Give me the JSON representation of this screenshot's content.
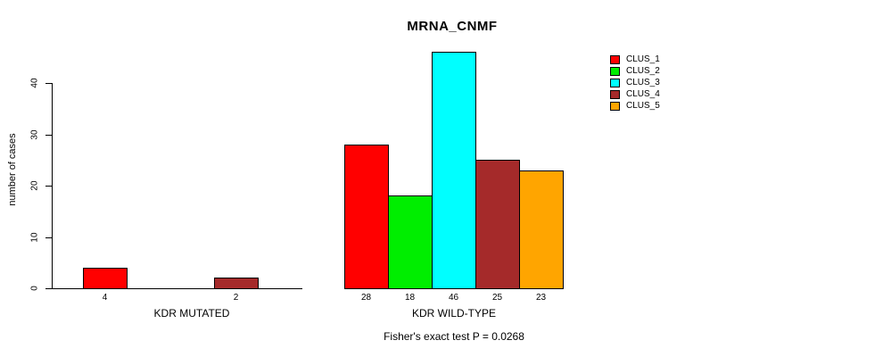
{
  "title": "MRNA_CNMF",
  "chart_data": {
    "type": "bar",
    "title": "MRNA_CNMF",
    "xlabel": "",
    "ylabel": "number of cases",
    "ylim": [
      0,
      46
    ],
    "yticks": [
      0,
      10,
      20,
      30,
      40
    ],
    "grid": false,
    "legend_position": "right-outside",
    "groups": [
      "KDR MUTATED",
      "KDR WILD-TYPE"
    ],
    "series": [
      {
        "name": "CLUS_1",
        "color": "#FF0000",
        "values": [
          4,
          28
        ]
      },
      {
        "name": "CLUS_2",
        "color": "#00EE00",
        "values": [
          0,
          18
        ]
      },
      {
        "name": "CLUS_3",
        "color": "#00FFFF",
        "values": [
          0,
          46
        ]
      },
      {
        "name": "CLUS_4",
        "color": "#A52A2A",
        "values": [
          2,
          25
        ]
      },
      {
        "name": "CLUS_5",
        "color": "#FFA500",
        "values": [
          0,
          23
        ]
      }
    ],
    "value_labels": "shown under each bar, only for nonzero values",
    "annotation": "Fisher's exact test P = 0.0268"
  },
  "axis": {
    "tick_labels": [
      "0",
      "10",
      "20",
      "30",
      "40"
    ]
  }
}
